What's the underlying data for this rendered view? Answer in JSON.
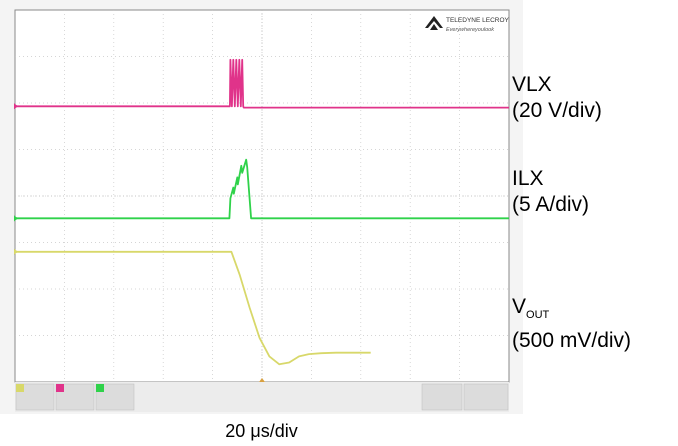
{
  "brand": {
    "name": "TELEDYNE LECROY",
    "tagline": "Everywhereyoulook"
  },
  "x_scale_label": "20 μs/div",
  "channels": [
    {
      "name": "VLX",
      "scale": "(20 V/div)",
      "color": "#e0338a"
    },
    {
      "name": "ILX",
      "scale": "(5 A/div)",
      "color": "#2fd24a"
    },
    {
      "name_main": "V",
      "name_sub": "OUT",
      "scale": "(500 mV/div)",
      "color": "#d8d86a"
    }
  ],
  "chart_data": {
    "type": "line",
    "title": "",
    "xlabel": "20 μs/div",
    "grid": true,
    "x_divisions": 10,
    "y_divisions": 8,
    "xlim": [
      0,
      10
    ],
    "ylim": [
      0,
      8
    ],
    "series": [
      {
        "name": "VLX",
        "color": "#e0338a",
        "x": [
          0,
          4.35,
          4.36,
          4.39,
          4.42,
          4.45,
          4.48,
          4.51,
          4.54,
          4.57,
          4.6,
          4.62,
          4.63,
          4.9,
          10
        ],
        "y": [
          5.93,
          5.93,
          6.93,
          5.93,
          6.93,
          5.93,
          6.93,
          5.93,
          6.93,
          5.93,
          6.93,
          5.93,
          5.9,
          5.9,
          5.9
        ]
      },
      {
        "name": "ILX",
        "color": "#2fd24a",
        "x": [
          0,
          4.34,
          4.36,
          4.42,
          4.43,
          4.5,
          4.51,
          4.58,
          4.6,
          4.68,
          4.7,
          4.78,
          10
        ],
        "y": [
          3.52,
          3.52,
          3.95,
          4.18,
          4.05,
          4.4,
          4.25,
          4.65,
          4.5,
          4.78,
          4.62,
          3.52,
          3.52
        ]
      },
      {
        "name": "VOUT",
        "color": "#d8d86a",
        "x": [
          0,
          4.38,
          4.55,
          4.75,
          4.95,
          5.15,
          5.35,
          5.55,
          5.75,
          5.95,
          6.2,
          6.5,
          6.8,
          7.2
        ],
        "y": [
          2.8,
          2.8,
          2.3,
          1.6,
          0.95,
          0.55,
          0.38,
          0.42,
          0.55,
          0.6,
          0.62,
          0.63,
          0.63,
          0.63
        ]
      }
    ]
  }
}
